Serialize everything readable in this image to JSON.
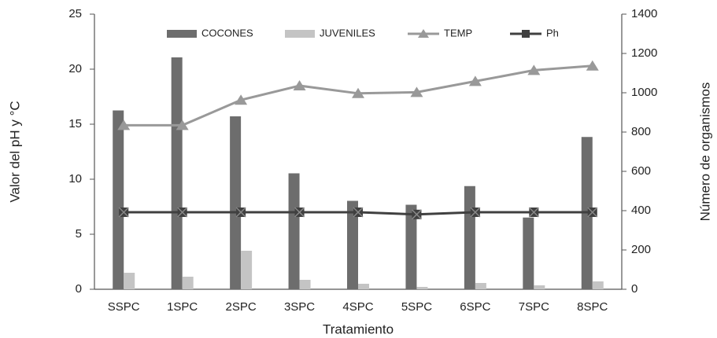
{
  "chart_data": {
    "type": "bar",
    "x_label": "Tratamiento",
    "y_label": "Valor del pH y °C",
    "y2_label": "Número de organismos",
    "categories": [
      "SSPC",
      "1SPC",
      "2SPC",
      "3SPC",
      "4SPC",
      "5SPC",
      "6SPC",
      "7SPC",
      "8SPC"
    ],
    "series": [
      {
        "name": "COCONES",
        "type": "bar",
        "axis": "y2",
        "color": "#6d6d6d",
        "values": [
          910,
          1180,
          880,
          590,
          450,
          430,
          525,
          365,
          775
        ]
      },
      {
        "name": "JUVENILES",
        "type": "bar",
        "axis": "y2",
        "color": "#c4c4c4",
        "values": [
          84,
          64,
          196,
          48,
          28,
          12,
          32,
          20,
          40
        ]
      },
      {
        "name": "TEMP",
        "type": "line",
        "marker": "triangle",
        "color": "#999999",
        "values": [
          14.9,
          14.9,
          17.2,
          18.5,
          17.8,
          17.9,
          18.9,
          19.9,
          20.3
        ]
      },
      {
        "name": "Ph",
        "type": "line",
        "marker": "square",
        "color": "#404040",
        "values": [
          7.0,
          7.0,
          7.0,
          7.0,
          7.0,
          6.8,
          7.0,
          7.0,
          7.0
        ]
      }
    ],
    "ylim": [
      0,
      25
    ],
    "yticks": [
      0,
      5,
      10,
      15,
      20,
      25
    ],
    "y2lim": [
      0,
      1400
    ],
    "y2ticks": [
      0,
      200,
      400,
      600,
      800,
      1000,
      1200,
      1400
    ],
    "legend": "top"
  }
}
